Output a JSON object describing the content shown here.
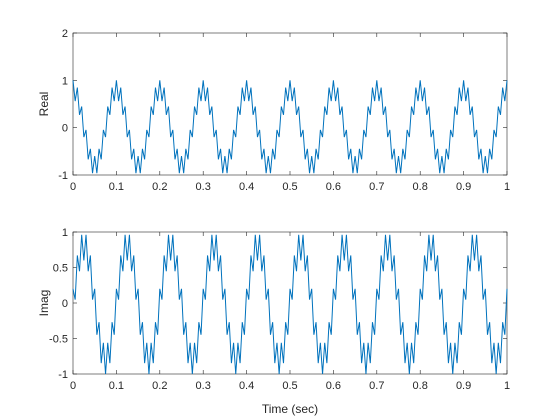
{
  "chart_data": [
    {
      "type": "line",
      "ylabel": "Real",
      "xlim": [
        0,
        1
      ],
      "ylim": [
        -1,
        2
      ],
      "xticks": [
        0,
        0.1,
        0.2,
        0.3,
        0.4,
        0.5,
        0.6,
        0.7,
        0.8,
        0.9,
        1
      ],
      "yticks": [
        -1,
        0,
        1,
        2
      ],
      "x": [
        0,
        0.005,
        0.01,
        0.015,
        0.02,
        0.025,
        0.03,
        0.035,
        0.04,
        0.045,
        0.05,
        0.055,
        0.06,
        0.065,
        0.07,
        0.075,
        0.08,
        0.085,
        0.09,
        0.095,
        0.1,
        0.105,
        0.11,
        0.115,
        0.12,
        0.125,
        0.13,
        0.135,
        0.14,
        0.145,
        0.15,
        0.155,
        0.16,
        0.165,
        0.17,
        0.175,
        0.18,
        0.185,
        0.19,
        0.195,
        0.2,
        0.205,
        0.21,
        0.215,
        0.22,
        0.225,
        0.23,
        0.235,
        0.24,
        0.245,
        0.25,
        0.255,
        0.26,
        0.265,
        0.27,
        0.275,
        0.28,
        0.285,
        0.29,
        0.295,
        0.3,
        0.305,
        0.31,
        0.315,
        0.32,
        0.325,
        0.33,
        0.335,
        0.34,
        0.345,
        0.35,
        0.355,
        0.36,
        0.365,
        0.37,
        0.375,
        0.38,
        0.385,
        0.39,
        0.395,
        0.4,
        0.405,
        0.41,
        0.415,
        0.42,
        0.425,
        0.43,
        0.435,
        0.44,
        0.445,
        0.45,
        0.455,
        0.46,
        0.465,
        0.47,
        0.475,
        0.48,
        0.485,
        0.49,
        0.495,
        0.5,
        0.505,
        0.51,
        0.515,
        0.52,
        0.525,
        0.53,
        0.535,
        0.54,
        0.545,
        0.55,
        0.555,
        0.56,
        0.565,
        0.57,
        0.575,
        0.58,
        0.585,
        0.59,
        0.595,
        0.6,
        0.605,
        0.61,
        0.615,
        0.62,
        0.625,
        0.63,
        0.635,
        0.64,
        0.645,
        0.65,
        0.655,
        0.66,
        0.665,
        0.67,
        0.675,
        0.68,
        0.685,
        0.69,
        0.695,
        0.7,
        0.705,
        0.71,
        0.715,
        0.72,
        0.725,
        0.73,
        0.735,
        0.74,
        0.745,
        0.75,
        0.755,
        0.76,
        0.765,
        0.77,
        0.775,
        0.78,
        0.785,
        0.79,
        0.795,
        0.8,
        0.805,
        0.81,
        0.815,
        0.82,
        0.825,
        0.83,
        0.835,
        0.84,
        0.845,
        0.85,
        0.855,
        0.86,
        0.865,
        0.87,
        0.875,
        0.88,
        0.885,
        0.89,
        0.895,
        0.9,
        0.905,
        0.91,
        0.915,
        0.92,
        0.925,
        0.93,
        0.935,
        0.94,
        0.945,
        0.95,
        0.955,
        0.96,
        0.965,
        0.97,
        0.975,
        0.98,
        0.985,
        0.99,
        0.995,
        1
      ],
      "series": [
        {
          "color": "#0072bd",
          "values": [
            1,
            0.561,
            0.847,
            0.27,
            0.447,
            -0.2,
            -0.047,
            -0.67,
            -0.447,
            -0.961,
            -0.6,
            -0.961,
            -0.447,
            -0.67,
            -0.047,
            -0.2,
            0.447,
            0.27,
            0.847,
            0.561,
            1,
            0.561,
            0.847,
            0.27,
            0.447,
            -0.2,
            -0.047,
            -0.67,
            -0.447,
            -0.961,
            -0.6,
            -0.961,
            -0.447,
            -0.67,
            -0.047,
            -0.2,
            0.447,
            0.27,
            0.847,
            0.561,
            1,
            0.561,
            0.847,
            0.27,
            0.447,
            -0.2,
            -0.047,
            -0.67,
            -0.447,
            -0.961,
            -0.6,
            -0.961,
            -0.447,
            -0.67,
            -0.047,
            -0.2,
            0.447,
            0.27,
            0.847,
            0.561,
            1,
            0.561,
            0.847,
            0.27,
            0.447,
            -0.2,
            -0.047,
            -0.67,
            -0.447,
            -0.961,
            -0.6,
            -0.961,
            -0.447,
            -0.67,
            -0.047,
            -0.2,
            0.447,
            0.27,
            0.847,
            0.561,
            1,
            0.561,
            0.847,
            0.27,
            0.447,
            -0.2,
            -0.047,
            -0.67,
            -0.447,
            -0.961,
            -0.6,
            -0.961,
            -0.447,
            -0.67,
            -0.047,
            -0.2,
            0.447,
            0.27,
            0.847,
            0.561,
            1,
            0.561,
            0.847,
            0.27,
            0.447,
            -0.2,
            -0.047,
            -0.67,
            -0.447,
            -0.961,
            -0.6,
            -0.961,
            -0.447,
            -0.67,
            -0.047,
            -0.2,
            0.447,
            0.27,
            0.847,
            0.561,
            1,
            0.561,
            0.847,
            0.27,
            0.447,
            -0.2,
            -0.047,
            -0.67,
            -0.447,
            -0.961,
            -0.6,
            -0.961,
            -0.447,
            -0.67,
            -0.047,
            -0.2,
            0.447,
            0.27,
            0.847,
            0.561,
            1,
            0.561,
            0.847,
            0.27,
            0.447,
            -0.2,
            -0.047,
            -0.67,
            -0.447,
            -0.961,
            -0.6,
            -0.961,
            -0.447,
            -0.67,
            -0.047,
            -0.2,
            0.447,
            0.27,
            0.847,
            0.561,
            1,
            0.561,
            0.847,
            0.27,
            0.447,
            -0.2,
            -0.047,
            -0.67,
            -0.447,
            -0.961,
            -0.6,
            -0.961,
            -0.447,
            -0.67,
            -0.047,
            -0.2,
            0.447,
            0.27,
            0.847,
            0.561,
            1,
            0.561,
            0.847,
            0.27,
            0.447,
            -0.2,
            -0.047,
            -0.67,
            -0.447,
            -0.961,
            -0.6,
            -0.961,
            -0.447,
            -0.67,
            -0.047,
            -0.2,
            0.447,
            0.27,
            0.847,
            0.561,
            1
          ]
        }
      ]
    },
    {
      "type": "line",
      "ylabel": "Imag",
      "xlabel": "Time (sec)",
      "xlim": [
        0,
        1
      ],
      "ylim": [
        -1,
        1
      ],
      "xticks": [
        0,
        0.1,
        0.2,
        0.3,
        0.4,
        0.5,
        0.6,
        0.7,
        0.8,
        0.9,
        1
      ],
      "yticks": [
        -1,
        -0.5,
        0,
        0.5,
        1
      ],
      "x": [
        0,
        0.005,
        0.01,
        0.015,
        0.02,
        0.025,
        0.03,
        0.035,
        0.04,
        0.045,
        0.05,
        0.055,
        0.06,
        0.065,
        0.07,
        0.075,
        0.08,
        0.085,
        0.09,
        0.095,
        0.1,
        0.105,
        0.11,
        0.115,
        0.12,
        0.125,
        0.13,
        0.135,
        0.14,
        0.145,
        0.15,
        0.155,
        0.16,
        0.165,
        0.17,
        0.175,
        0.18,
        0.185,
        0.19,
        0.195,
        0.2,
        0.205,
        0.21,
        0.215,
        0.22,
        0.225,
        0.23,
        0.235,
        0.24,
        0.245,
        0.25,
        0.255,
        0.26,
        0.265,
        0.27,
        0.275,
        0.28,
        0.285,
        0.29,
        0.295,
        0.3,
        0.305,
        0.31,
        0.315,
        0.32,
        0.325,
        0.33,
        0.335,
        0.34,
        0.345,
        0.35,
        0.355,
        0.36,
        0.365,
        0.37,
        0.375,
        0.38,
        0.385,
        0.39,
        0.395,
        0.4,
        0.405,
        0.41,
        0.415,
        0.42,
        0.425,
        0.43,
        0.435,
        0.44,
        0.445,
        0.45,
        0.455,
        0.46,
        0.465,
        0.47,
        0.475,
        0.48,
        0.485,
        0.49,
        0.495,
        0.5,
        0.505,
        0.51,
        0.515,
        0.52,
        0.525,
        0.53,
        0.535,
        0.54,
        0.545,
        0.55,
        0.555,
        0.56,
        0.565,
        0.57,
        0.575,
        0.58,
        0.585,
        0.59,
        0.595,
        0.6,
        0.605,
        0.61,
        0.615,
        0.62,
        0.625,
        0.63,
        0.635,
        0.64,
        0.645,
        0.65,
        0.655,
        0.66,
        0.665,
        0.67,
        0.675,
        0.68,
        0.685,
        0.69,
        0.695,
        0.7,
        0.705,
        0.71,
        0.715,
        0.72,
        0.725,
        0.73,
        0.735,
        0.74,
        0.745,
        0.75,
        0.755,
        0.76,
        0.765,
        0.77,
        0.775,
        0.78,
        0.785,
        0.79,
        0.795,
        0.8,
        0.805,
        0.81,
        0.815,
        0.82,
        0.825,
        0.83,
        0.835,
        0.84,
        0.845,
        0.85,
        0.855,
        0.86,
        0.865,
        0.87,
        0.875,
        0.88,
        0.885,
        0.89,
        0.895,
        0.9,
        0.905,
        0.91,
        0.915,
        0.92,
        0.925,
        0.93,
        0.935,
        0.94,
        0.945,
        0.95,
        0.955,
        0.96,
        0.965,
        0.97,
        0.975,
        0.98,
        0.985,
        0.99,
        0.995,
        1
      ],
      "series": [
        {
          "color": "#0072bd",
          "values": [
            0.2,
            0.047,
            0.67,
            0.447,
            0.961,
            0.6,
            0.961,
            0.447,
            0.67,
            0.047,
            0.2,
            -0.447,
            -0.27,
            -0.847,
            -0.561,
            -1,
            -0.561,
            -0.847,
            -0.27,
            -0.447,
            0.2,
            0.047,
            0.67,
            0.447,
            0.961,
            0.6,
            0.961,
            0.447,
            0.67,
            0.047,
            0.2,
            -0.447,
            -0.27,
            -0.847,
            -0.561,
            -1,
            -0.561,
            -0.847,
            -0.27,
            -0.447,
            0.2,
            0.047,
            0.67,
            0.447,
            0.961,
            0.6,
            0.961,
            0.447,
            0.67,
            0.047,
            0.2,
            -0.447,
            -0.27,
            -0.847,
            -0.561,
            -1,
            -0.561,
            -0.847,
            -0.27,
            -0.447,
            0.2,
            0.047,
            0.67,
            0.447,
            0.961,
            0.6,
            0.961,
            0.447,
            0.67,
            0.047,
            0.2,
            -0.447,
            -0.27,
            -0.847,
            -0.561,
            -1,
            -0.561,
            -0.847,
            -0.27,
            -0.447,
            0.2,
            0.047,
            0.67,
            0.447,
            0.961,
            0.6,
            0.961,
            0.447,
            0.67,
            0.047,
            0.2,
            -0.447,
            -0.27,
            -0.847,
            -0.561,
            -1,
            -0.561,
            -0.847,
            -0.27,
            -0.447,
            0.2,
            0.047,
            0.67,
            0.447,
            0.961,
            0.6,
            0.961,
            0.447,
            0.67,
            0.047,
            0.2,
            -0.447,
            -0.27,
            -0.847,
            -0.561,
            -1,
            -0.561,
            -0.847,
            -0.27,
            -0.447,
            0.2,
            0.047,
            0.67,
            0.447,
            0.961,
            0.6,
            0.961,
            0.447,
            0.67,
            0.047,
            0.2,
            -0.447,
            -0.27,
            -0.847,
            -0.561,
            -1,
            -0.561,
            -0.847,
            -0.27,
            -0.447,
            0.2,
            0.047,
            0.67,
            0.447,
            0.961,
            0.6,
            0.961,
            0.447,
            0.67,
            0.047,
            0.2,
            -0.447,
            -0.27,
            -0.847,
            -0.561,
            -1,
            -0.561,
            -0.847,
            -0.27,
            -0.447,
            0.2,
            0.047,
            0.67,
            0.447,
            0.961,
            0.6,
            0.961,
            0.447,
            0.67,
            0.047,
            0.2,
            -0.447,
            -0.27,
            -0.847,
            -0.561,
            -1,
            -0.561,
            -0.847,
            -0.27,
            -0.447,
            0.2,
            0.047,
            0.67,
            0.447,
            0.961,
            0.6,
            0.961,
            0.447,
            0.67,
            0.047,
            0.2,
            -0.447,
            -0.27,
            -0.847,
            -0.561,
            -1,
            -0.561,
            -0.847,
            -0.27,
            -0.447,
            0.2
          ]
        }
      ]
    }
  ]
}
